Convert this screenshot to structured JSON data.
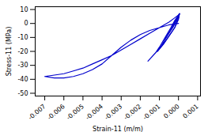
{
  "chart_data": {
    "type": "line",
    "xlabel": "Strain-11 (m/m)",
    "ylabel": "Stress-11 (MPa)",
    "xlim": [
      -0.0075,
      0.00115
    ],
    "ylim": [
      -52,
      12
    ],
    "xticks": [
      -0.007,
      -0.006,
      -0.005,
      -0.004,
      -0.003,
      -0.002,
      -0.001,
      {
        "value": 0,
        "label": "0.000"
      },
      0.001
    ],
    "yticks": [
      10,
      0,
      -10,
      -20,
      -30,
      -40,
      -50
    ],
    "grid": false,
    "series": [
      {
        "color": "#0000cc",
        "x": [
          0.0,
          -0.0005,
          -0.001,
          -0.0015,
          -0.002,
          -0.0025,
          -0.003,
          -0.0035,
          -0.004,
          -0.0045,
          -0.005,
          -0.0055,
          -0.006,
          -0.0065,
          -0.007,
          -0.007,
          -0.0065,
          -0.006,
          -0.0055,
          -0.005,
          -0.0045,
          -0.004,
          -0.0035,
          -0.003,
          -0.0025,
          -0.002,
          -0.0015,
          -0.001,
          -0.0005,
          -0.0002,
          0.0,
          5e-05
        ],
        "values": [
          0,
          -1,
          -3,
          -5,
          -8,
          -12,
          -17,
          -23,
          -29,
          -33,
          -36,
          -38,
          -39,
          -39,
          -38,
          -38,
          -37,
          -36,
          -34,
          -32,
          -29,
          -26,
          -23,
          -19,
          -15,
          -11,
          -7,
          -3,
          1,
          4,
          6,
          7
        ]
      },
      {
        "color": "#0000cc",
        "x": [
          5e-05,
          0.0,
          -0.0002,
          -0.0004,
          -0.0007,
          -0.001,
          -0.0012,
          -0.0014,
          -0.0016,
          -0.0012,
          -0.0008,
          -0.0005,
          -0.0002,
          0.0,
          5e-05
        ],
        "values": [
          7,
          6,
          2,
          -3,
          -10,
          -17,
          -21,
          -24,
          -27,
          -21,
          -15,
          -9,
          -3,
          4,
          7
        ]
      },
      {
        "color": "#0000cc",
        "x": [
          5e-05,
          0.0,
          -0.0002,
          -0.0004,
          -0.0006,
          -0.0009,
          -0.0011,
          -0.0008,
          -0.0005,
          -0.0002,
          0.0,
          5e-05
        ],
        "values": [
          7,
          5,
          1,
          -4,
          -9,
          -16,
          -20,
          -15,
          -9,
          -3,
          3,
          7
        ]
      },
      {
        "color": "#0000cc",
        "x": [
          5e-05,
          0.0,
          -0.0002,
          -0.0004,
          -0.0007,
          -0.0005,
          -0.0003,
          -0.0001,
          5e-05
        ],
        "values": [
          7,
          5,
          0,
          -5,
          -11,
          -7,
          -3,
          2,
          7
        ]
      }
    ]
  }
}
